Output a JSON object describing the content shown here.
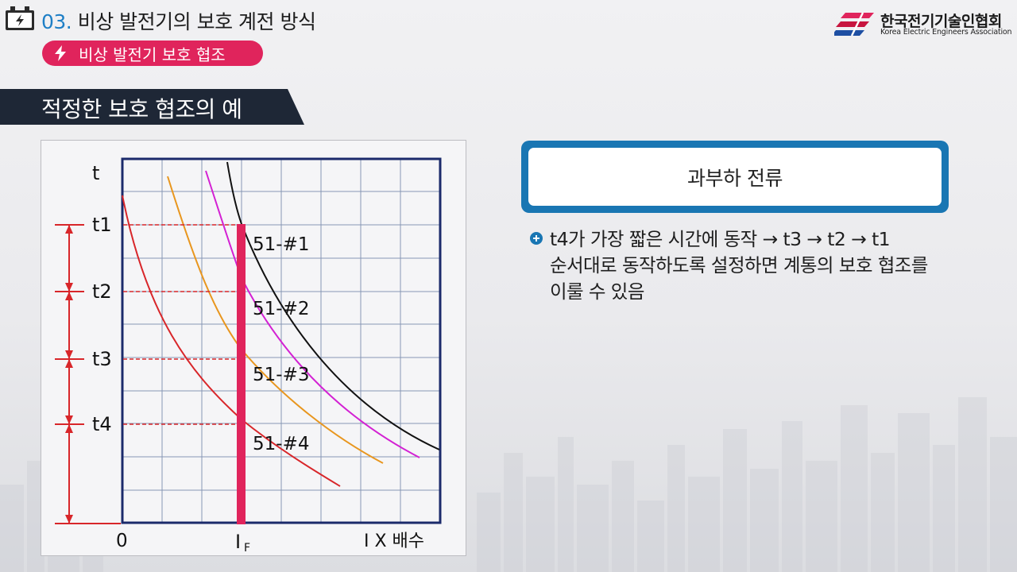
{
  "header": {
    "section_number": "03.",
    "section_title": "비상 발전기의 보호 계전 방식",
    "subsection_label": "비상 발전기 보호 협조",
    "org_name_ko": "한국전기기술인협회",
    "org_name_en": "Korea Electric Engineers Association",
    "icons": {
      "header": "battery-icon",
      "pill": "bolt-icon",
      "logo": "kea-logo-icon"
    }
  },
  "slide_title": "적정한 보호 협조의 예",
  "diagram": {
    "y_axis_label": "t",
    "x_origin_label": "0",
    "x_fault_label_main": "I",
    "x_fault_label_sub": "F",
    "x_axis_label": "I X 배수",
    "time_levels": [
      "t1",
      "t2",
      "t3",
      "t4"
    ],
    "relay_labels": [
      "51-#1",
      "51-#2",
      "51-#3",
      "51-#4"
    ],
    "colors": {
      "relay1": "#111111",
      "relay2": "#d321d3",
      "relay3": "#e8961e",
      "relay4": "#d8262a",
      "fault_line": "#e0245c",
      "grid": "#8796b4",
      "frame": "#1b2a6b"
    }
  },
  "callout": {
    "title": "과부하 전류"
  },
  "bullet": {
    "icon": "plus-circle-icon",
    "lines": [
      "t4가 가장 짧은 시간에 동작 → t3 → t2 → t1",
      "순서대로 동작하도록 설정하면 계통의 보호 협조를",
      "이룰 수 있음"
    ]
  }
}
